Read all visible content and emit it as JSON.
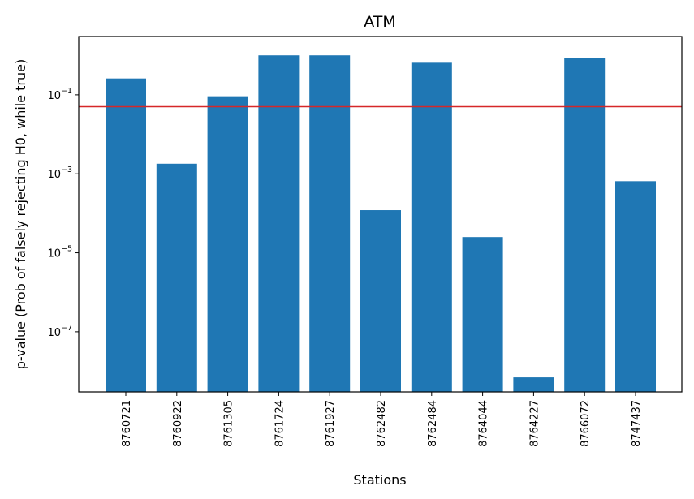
{
  "chart_data": {
    "type": "bar",
    "title": "ATM",
    "xlabel": "Stations",
    "ylabel": "p-value (Prob of falsely rejecting H0, while true)",
    "y_scale": "log",
    "ylim": [
      3e-09,
      3.0
    ],
    "y_ticks": [
      {
        "value": 1e-07,
        "base": "10",
        "exp": "−7"
      },
      {
        "value": 1e-05,
        "base": "10",
        "exp": "−5"
      },
      {
        "value": 0.001,
        "base": "10",
        "exp": "−3"
      },
      {
        "value": 0.1,
        "base": "10",
        "exp": "−1"
      }
    ],
    "categories": [
      "8760721",
      "8760922",
      "8761305",
      "8761724",
      "8761927",
      "8762482",
      "8762484",
      "8764044",
      "8764227",
      "8766072",
      "8747437"
    ],
    "values": [
      0.26,
      0.0018,
      0.092,
      1.0,
      1.0,
      0.00012,
      0.65,
      2.5e-05,
      7e-09,
      0.85,
      0.00065
    ],
    "bar_color": "#1f77b4",
    "threshold": {
      "value": 0.05,
      "color": "#d62728"
    },
    "grid": false
  }
}
